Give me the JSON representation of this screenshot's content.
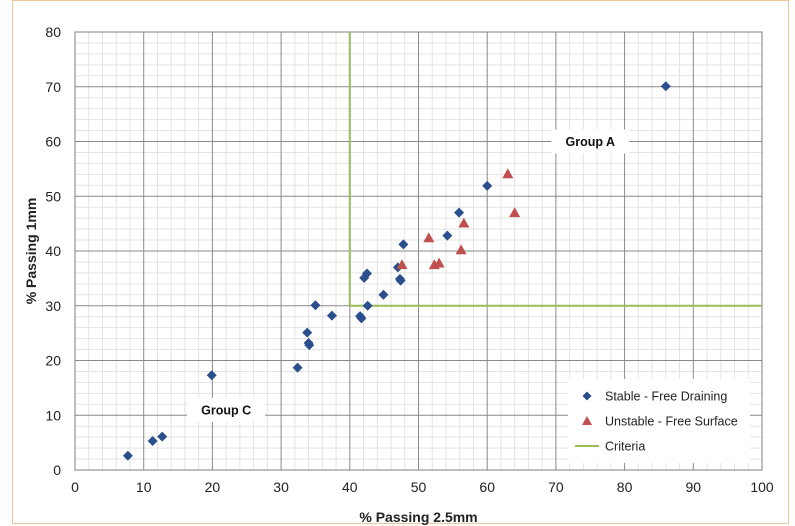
{
  "chart_data": {
    "type": "scatter",
    "xlabel": "% Passing 2.5mm",
    "ylabel": "% Passing 1mm",
    "xlim": [
      0,
      100
    ],
    "ylim": [
      0,
      80
    ],
    "xticks": [
      0,
      10,
      20,
      30,
      40,
      50,
      60,
      70,
      80,
      90,
      100
    ],
    "yticks": [
      0,
      10,
      20,
      30,
      40,
      50,
      60,
      70,
      80
    ],
    "grid": true,
    "legend_position": "bottom-right",
    "series": [
      {
        "name": "Stable - Free Draining",
        "marker": "diamond",
        "color": "#2a4f8c",
        "points": [
          [
            7.7,
            2.6
          ],
          [
            11.3,
            5.3
          ],
          [
            12.7,
            6.1
          ],
          [
            19.9,
            17.3
          ],
          [
            32.4,
            18.7
          ],
          [
            33.8,
            25.1
          ],
          [
            34.0,
            23.2
          ],
          [
            34.1,
            22.8
          ],
          [
            35.0,
            30.1
          ],
          [
            37.4,
            28.2
          ],
          [
            41.5,
            28.1
          ],
          [
            41.7,
            27.7
          ],
          [
            42.1,
            35.1
          ],
          [
            42.5,
            35.9
          ],
          [
            42.6,
            30.0
          ],
          [
            44.9,
            32.0
          ],
          [
            47.0,
            37.0
          ],
          [
            47.3,
            34.9
          ],
          [
            47.4,
            34.6
          ],
          [
            47.8,
            41.2
          ],
          [
            54.2,
            42.8
          ],
          [
            55.9,
            47.0
          ],
          [
            60.0,
            51.9
          ],
          [
            86.0,
            70.1
          ]
        ]
      },
      {
        "name": "Unstable - Free Surface",
        "marker": "triangle",
        "color": "#c0504d",
        "points": [
          [
            47.6,
            37.5
          ],
          [
            51.5,
            42.4
          ],
          [
            52.3,
            37.5
          ],
          [
            53.0,
            37.8
          ],
          [
            56.2,
            40.2
          ],
          [
            56.6,
            45.1
          ],
          [
            63.0,
            54.1
          ],
          [
            64.0,
            47.0
          ]
        ]
      },
      {
        "name": "Criteria",
        "marker": "line",
        "color": "#9bbb59",
        "points": [
          [
            40,
            80
          ],
          [
            40,
            30
          ],
          [
            100,
            30
          ]
        ]
      }
    ],
    "annotations": [
      {
        "text": "Group A",
        "x": 75,
        "y": 60
      },
      {
        "text": "Group C",
        "x": 22,
        "y": 11
      }
    ]
  }
}
